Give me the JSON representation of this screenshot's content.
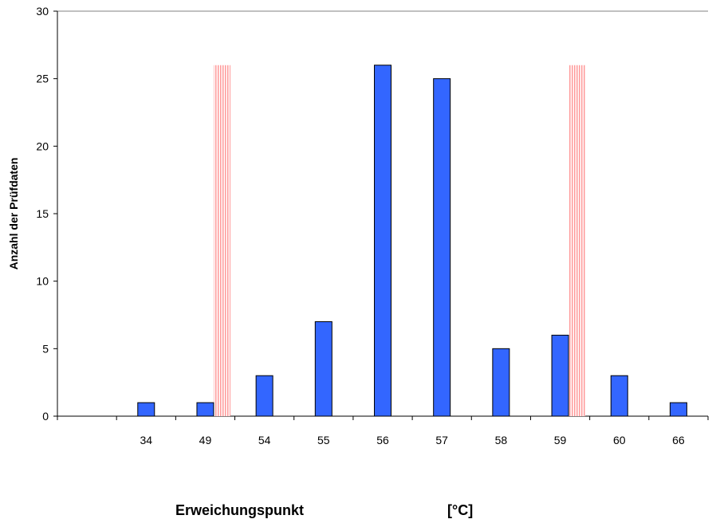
{
  "chart_data": {
    "type": "bar",
    "categories": [
      "",
      "34",
      "49",
      "54",
      "55",
      "56",
      "57",
      "58",
      "59",
      "60",
      "66"
    ],
    "values": [
      null,
      1,
      1,
      3,
      7,
      26,
      25,
      5,
      6,
      3,
      1
    ],
    "limit_markers": [
      {
        "category": "49",
        "value": 26
      },
      {
        "category": "59",
        "value": 26
      }
    ],
    "ylim": [
      0,
      30
    ],
    "yticks": [
      0,
      5,
      10,
      15,
      20,
      25,
      30
    ],
    "ylabel": "Anzahl der Prüfdaten",
    "xlabel": "Erweichungspunkt",
    "xunit": "[°C]",
    "grid": false,
    "colors": {
      "bar": "#3366FF",
      "bar_stroke": "#000000",
      "marker": "#FF9999"
    }
  }
}
